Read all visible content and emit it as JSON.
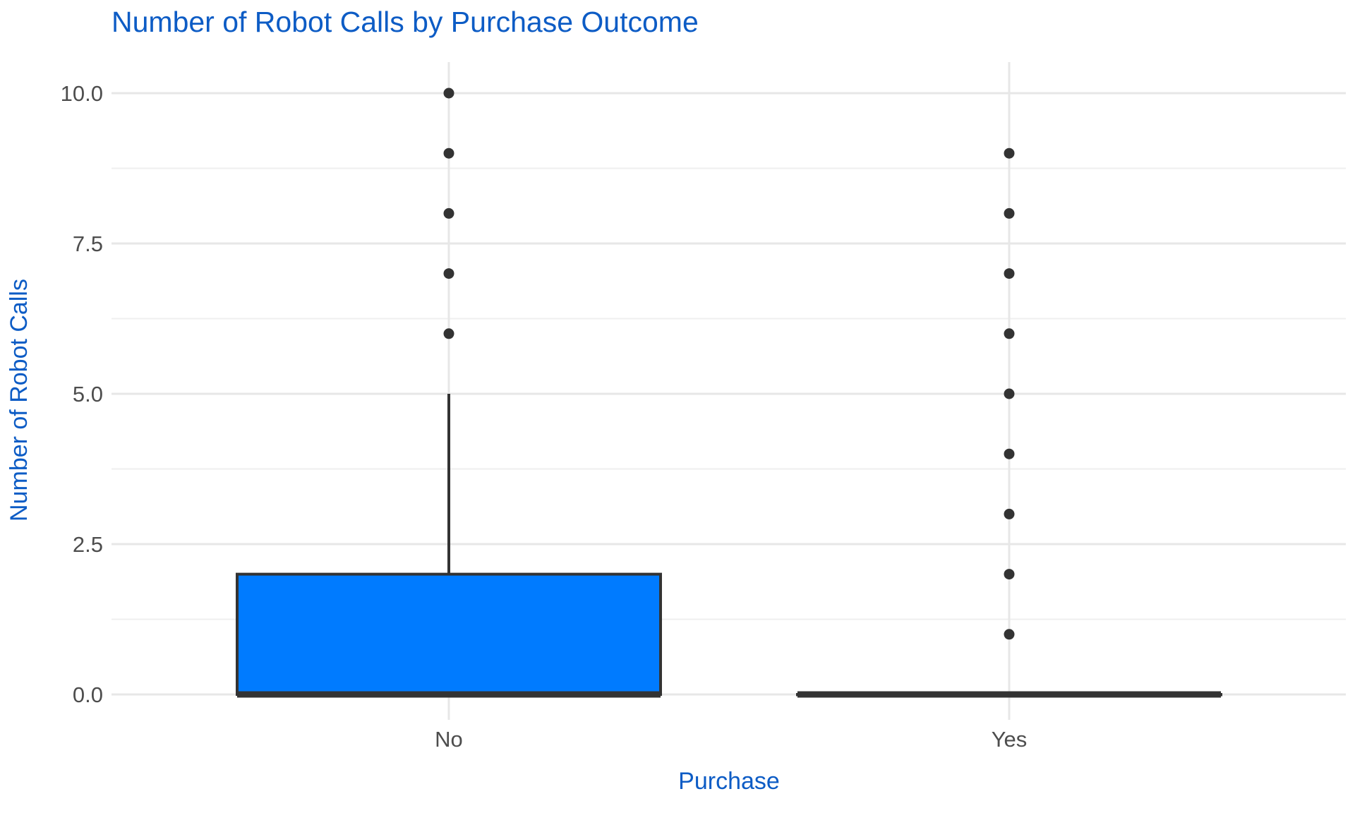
{
  "chart_data": {
    "type": "boxplot",
    "title": "Number of Robot Calls by Purchase Outcome",
    "xlabel": "Purchase",
    "ylabel": "Number of Robot Calls",
    "categories": [
      "No",
      "Yes"
    ],
    "ylim": [
      0,
      10
    ],
    "grid": "on",
    "legend": "none",
    "y_ticks": [
      {
        "v": 0,
        "label": "0.0"
      },
      {
        "v": 2.5,
        "label": "2.5"
      },
      {
        "v": 5,
        "label": "5.0"
      },
      {
        "v": 7.5,
        "label": "7.5"
      },
      {
        "v": 10,
        "label": "10.0"
      }
    ],
    "y_minor_ticks": [
      1.25,
      3.75,
      6.25,
      8.75
    ],
    "boxes": [
      {
        "category": "No",
        "q1": 0,
        "median": 0,
        "q3": 2,
        "whisker_low": 0,
        "whisker_high": 5,
        "outliers": [
          6,
          7,
          8,
          9,
          10
        ]
      },
      {
        "category": "Yes",
        "q1": 0,
        "median": 0,
        "q3": 0,
        "whisker_low": 0,
        "whisker_high": 0,
        "outliers": [
          1,
          2,
          3,
          4,
          5,
          6,
          7,
          8,
          9
        ]
      }
    ],
    "colors": {
      "box_fill": "#007BFF",
      "box_border": "#333333",
      "median": "#333333",
      "point": "#333333",
      "title_text": "#0D5CC5",
      "axis_title_text": "#0D5CC5",
      "tick_text": "#4D4D4D",
      "grid_major": "#E7E7E7",
      "grid_minor": "#EFEFEF",
      "background": "#FFFFFF"
    }
  }
}
